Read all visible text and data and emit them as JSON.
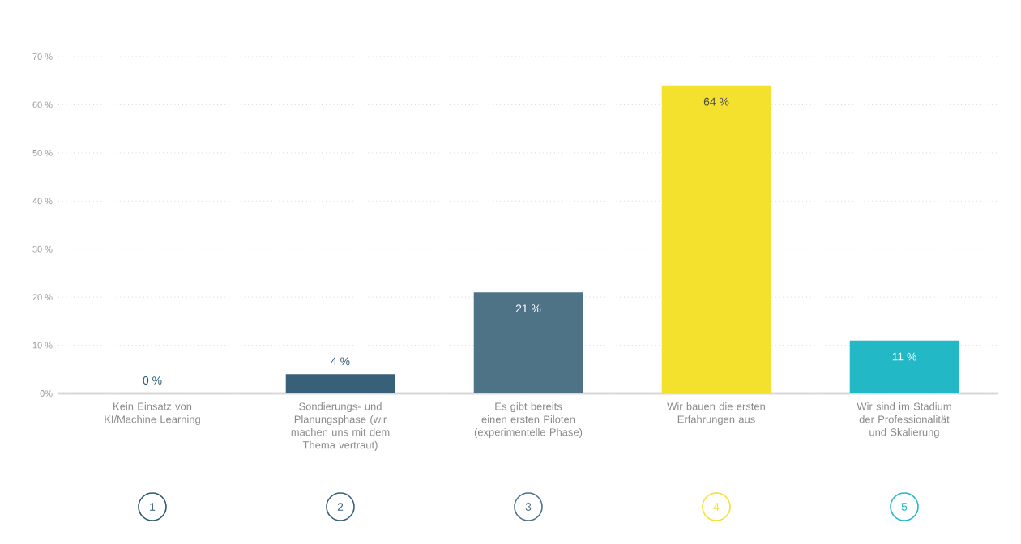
{
  "chart_data": {
    "type": "bar",
    "categories": [
      "Kein Einsatz von KI/Machine Learning",
      "Sondierungs- und Planungsphase (wir machen uns mit dem Thema vertraut)",
      "Es gibt bereits einen ersten Piloten (experimentelle Phase)",
      "Wir bauen die ersten Erfahrungen aus",
      "Wir sind im Stadium der Professionalität und Skalierung"
    ],
    "values": [
      0,
      4,
      21,
      64,
      11
    ],
    "value_labels": [
      "0 %",
      "4 %",
      "21 %",
      "64 %",
      "11 %"
    ],
    "colors": [
      "#2f5a72",
      "#386079",
      "#4e7387",
      "#f4e12e",
      "#22b8c6"
    ],
    "ylim": [
      0,
      70
    ],
    "yticks": [
      {
        "value": 0,
        "label": "0%"
      },
      {
        "value": 10,
        "label": "10 %"
      },
      {
        "value": 20,
        "label": "20 %"
      },
      {
        "value": 30,
        "label": "30 %"
      },
      {
        "value": 40,
        "label": "40 %"
      },
      {
        "value": 50,
        "label": "50 %"
      },
      {
        "value": 60,
        "label": "60 %"
      },
      {
        "value": 70,
        "label": "70 %"
      }
    ],
    "grid": "y",
    "annotations": [
      "1",
      "2",
      "3",
      "4",
      "5"
    ]
  }
}
